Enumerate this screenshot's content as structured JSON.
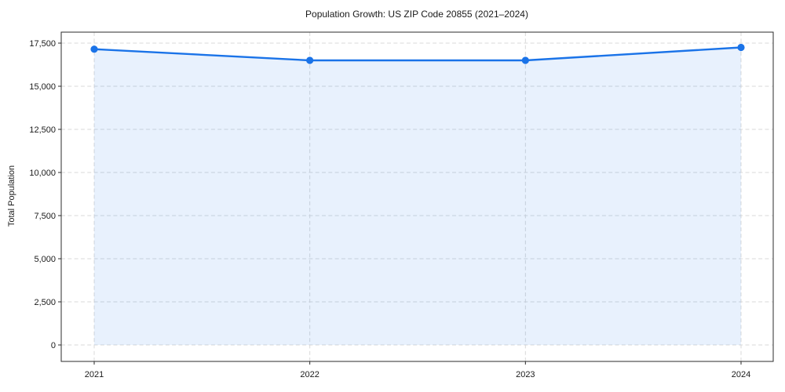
{
  "chart_data": {
    "type": "line",
    "title": "Population Growth: US ZIP Code 20855 (2021–2024)",
    "xlabel": "",
    "ylabel": "Total Population",
    "categories": [
      "2021",
      "2022",
      "2023",
      "2024"
    ],
    "series": [
      {
        "name": "Total Population",
        "values": [
          17150,
          16500,
          16500,
          17250
        ]
      }
    ],
    "ylim": [
      0,
      17500
    ],
    "yticks": [
      0,
      2500,
      5000,
      7500,
      10000,
      12500,
      15000,
      17500
    ],
    "ytick_labels": [
      "0",
      "2,500",
      "5,000",
      "7,500",
      "10,000",
      "12,500",
      "15,000",
      "17,500"
    ],
    "grid": "dashed, both axes",
    "legend": "none",
    "marker": "circle",
    "area_fill": true,
    "fill_to": 0,
    "colors": {
      "line": "#1a73e8",
      "marker": "#1a73e8",
      "area": "rgba(26,115,232,0.10)",
      "gridline": "#d9d9d9",
      "spine": "#2b2b2b",
      "text": "#1a1a1a",
      "background": "#ffffff"
    }
  }
}
